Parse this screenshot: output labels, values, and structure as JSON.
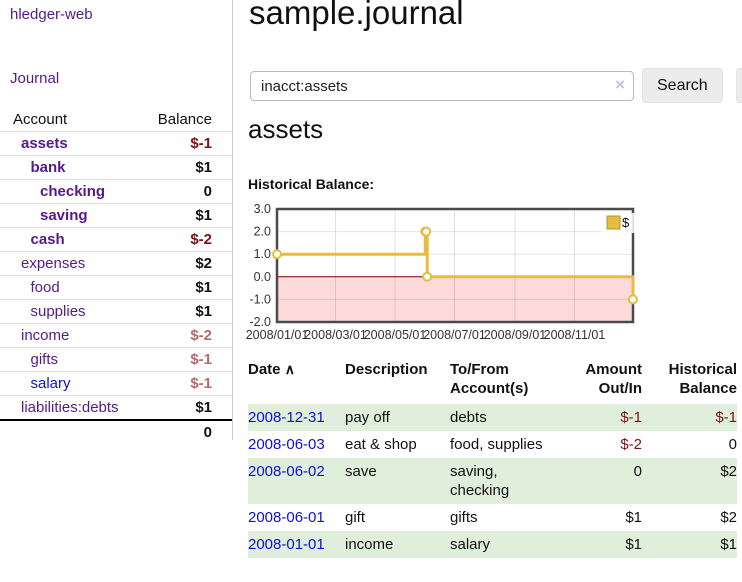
{
  "palette": {
    "link_purple": "#551a8b",
    "link_blue": "#0f0fd6",
    "negative_strong": "#7f1111",
    "negative_soft": "#b36b6b",
    "row_green": "#e0eedc",
    "chart_gold": "#e6bd3e",
    "chart_negative_fill": "#fcdada",
    "chart_zero_line": "#8b0000"
  },
  "sidebar": {
    "brand": "hledger-web",
    "nav_journal": "Journal",
    "table": {
      "account_header": "Account",
      "balance_header": "Balance",
      "accounts": [
        {
          "name": "assets",
          "level": 0,
          "bold": true,
          "balance": "$-1",
          "tone": "neg-strong"
        },
        {
          "name": "bank",
          "level": 1,
          "bold": true,
          "balance": "$1",
          "tone": ""
        },
        {
          "name": "checking",
          "level": 2,
          "bold": true,
          "balance": "0",
          "tone": ""
        },
        {
          "name": "saving",
          "level": 2,
          "bold": true,
          "balance": "$1",
          "tone": ""
        },
        {
          "name": "cash",
          "level": 1,
          "bold": true,
          "balance": "$-2",
          "tone": "neg-strong"
        },
        {
          "name": "expenses",
          "level": 0,
          "bold": false,
          "balance": "$2",
          "tone": ""
        },
        {
          "name": "food",
          "level": 1,
          "bold": false,
          "balance": "$1",
          "tone": ""
        },
        {
          "name": "supplies",
          "level": 1,
          "bold": false,
          "balance": "$1",
          "tone": ""
        },
        {
          "name": "income",
          "level": 0,
          "bold": false,
          "balance": "$-2",
          "tone": "neg-soft"
        },
        {
          "name": "gifts",
          "level": 1,
          "bold": false,
          "balance": "$-1",
          "tone": "neg-soft"
        },
        {
          "name": "salary",
          "level": 1,
          "bold": false,
          "balance": "$-1",
          "tone": "neg-soft",
          "blue": true
        },
        {
          "name": "liabilities:debts",
          "level": 0,
          "bold": false,
          "balance": "$1",
          "tone": ""
        }
      ],
      "total": "0"
    }
  },
  "header": {
    "title": "sample.journal"
  },
  "search": {
    "value": "inacct:assets",
    "clear_icon": "×",
    "button": "Search",
    "help_button": "?"
  },
  "account_page": {
    "heading": "assets",
    "chart_label": "Historical Balance:"
  },
  "chart_data": {
    "type": "line",
    "title": "Historical Balance of assets",
    "step": true,
    "series": [
      {
        "name": "$",
        "points": [
          [
            "2008-01-01",
            1
          ],
          [
            "2008-06-01",
            2
          ],
          [
            "2008-06-02",
            2
          ],
          [
            "2008-06-03",
            0
          ],
          [
            "2008-12-31",
            -1
          ]
        ]
      }
    ],
    "x_range": [
      "2008-01-01",
      "2008-12-31"
    ],
    "x_ticks": [
      "2008/01/01",
      "2008/03/01",
      "2008/05/01",
      "2008/07/01",
      "2008/09/01",
      "2008/11/01"
    ],
    "y_ticks": [
      "3.0",
      "2.0",
      "1.0",
      "0.0",
      "-1.0",
      "-2.0"
    ],
    "ylim": [
      -2,
      3
    ],
    "grid": true,
    "legend_position": "top-right",
    "legend_label": "$"
  },
  "register": {
    "headers": {
      "date": "Date",
      "sort_icon": "∧",
      "description": "Description",
      "tofrom": "To/From Account(s)",
      "amount": "Amount Out/In",
      "balance": "Historical Balance"
    },
    "rows": [
      {
        "date": "2008-12-31",
        "description": "pay off",
        "accounts": "debts",
        "amount": "$-1",
        "amount_tone": "neg-strong",
        "balance": "$-1",
        "balance_tone": "neg-strong"
      },
      {
        "date": "2008-06-03",
        "description": "eat & shop",
        "accounts": "food, supplies",
        "amount": "$-2",
        "amount_tone": "neg-strong",
        "balance": "0",
        "balance_tone": ""
      },
      {
        "date": "2008-06-02",
        "description": "save",
        "accounts": "saving,\nchecking",
        "amount": "0",
        "amount_tone": "",
        "balance": "$2",
        "balance_tone": ""
      },
      {
        "date": "2008-06-01",
        "description": "gift",
        "accounts": "gifts",
        "amount": "$1",
        "amount_tone": "",
        "balance": "$2",
        "balance_tone": ""
      },
      {
        "date": "2008-01-01",
        "description": "income",
        "accounts": "salary",
        "amount": "$1",
        "amount_tone": "",
        "balance": "$1",
        "balance_tone": ""
      }
    ]
  }
}
